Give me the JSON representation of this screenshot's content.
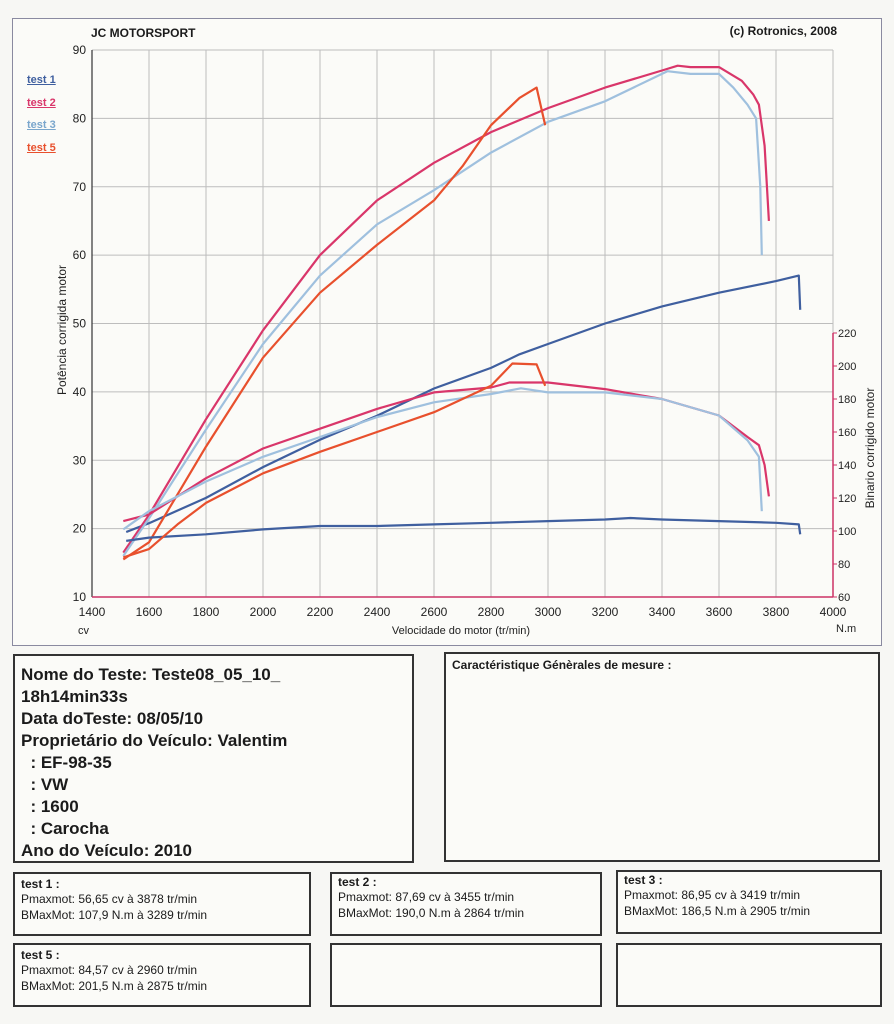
{
  "header": {
    "brand": "JC MOTORSPORT",
    "copyright": "(c) Rotronics, 2008"
  },
  "legend": [
    "test 1",
    "test 2",
    "test 3",
    "test 5"
  ],
  "colors": {
    "test1": "#3f5f9f",
    "test2": "#d9366a",
    "test3": "#9fc0de",
    "test5": "#e8502d",
    "grid": "#bdbdbd",
    "left_axis": "#333333",
    "right_axis": "#cc3366"
  },
  "chart_data": {
    "type": "line",
    "title": "",
    "xlabel": "Velocidade do motor (tr/min)",
    "ylabel": "Potência corrigida  motor",
    "y2label": "Binario corrigido motor",
    "x_unit": "cv",
    "y2_unit": "N.m",
    "xlim": [
      1400,
      4000
    ],
    "ylim": [
      10,
      90
    ],
    "y2lim": [
      60,
      220
    ],
    "x_ticks": [
      1400,
      1600,
      1800,
      2000,
      2200,
      2400,
      2600,
      2800,
      3000,
      3200,
      3400,
      3600,
      3800,
      4000
    ],
    "y_ticks": [
      10,
      20,
      30,
      40,
      50,
      60,
      70,
      80,
      90
    ],
    "y2_ticks": [
      60,
      80,
      100,
      120,
      140,
      160,
      180,
      200,
      220
    ],
    "grid": true,
    "legend_position": "top-left",
    "power_series": [
      {
        "name": "test 1",
        "x": [
          1520,
          1600,
          1800,
          2000,
          2200,
          2400,
          2600,
          2800,
          2900,
          3000,
          3200,
          3400,
          3600,
          3800,
          3880,
          3885
        ],
        "values": [
          19.5,
          20.8,
          24.5,
          29,
          33,
          36.5,
          40.5,
          43.5,
          45.5,
          47,
          50,
          52.5,
          54.5,
          56.2,
          57,
          52
        ]
      },
      {
        "name": "test 2",
        "x": [
          1510,
          1600,
          1700,
          1800,
          2000,
          2200,
          2400,
          2600,
          2800,
          3000,
          3200,
          3400,
          3455,
          3500,
          3600,
          3680,
          3720,
          3740,
          3760,
          3775
        ],
        "values": [
          16.5,
          22,
          29,
          36,
          49,
          60,
          68,
          73.5,
          78,
          81.5,
          84.5,
          87,
          87.7,
          87.5,
          87.5,
          85.5,
          83.5,
          82,
          76,
          65
        ]
      },
      {
        "name": "test 3",
        "x": [
          1510,
          1600,
          1700,
          1800,
          2000,
          2200,
          2400,
          2600,
          2800,
          3000,
          3200,
          3419,
          3500,
          3600,
          3650,
          3700,
          3730,
          3745,
          3750
        ],
        "values": [
          16,
          21.5,
          28,
          34.5,
          47,
          57,
          64.5,
          69.5,
          75,
          79.5,
          82.5,
          86.9,
          86.5,
          86.5,
          84.5,
          82,
          80,
          70,
          60
        ]
      },
      {
        "name": "test 5",
        "x": [
          1510,
          1600,
          1700,
          1800,
          2000,
          2200,
          2400,
          2600,
          2700,
          2800,
          2900,
          2960,
          2990
        ],
        "values": [
          15.5,
          18,
          25,
          32,
          45,
          54.5,
          61.5,
          68,
          73,
          79,
          83,
          84.5,
          79
        ]
      }
    ],
    "torque_series": [
      {
        "name": "test 1",
        "x": [
          1520,
          1600,
          1800,
          2000,
          2200,
          2400,
          2600,
          2800,
          3000,
          3200,
          3289,
          3400,
          3600,
          3800,
          3880,
          3885
        ],
        "values": [
          94,
          96,
          98,
          101,
          103,
          103,
          104,
          105,
          106,
          107,
          107.9,
          107,
          106,
          105,
          104,
          98
        ]
      },
      {
        "name": "test 2",
        "x": [
          1510,
          1600,
          1800,
          2000,
          2200,
          2400,
          2600,
          2800,
          2864,
          3000,
          3200,
          3400,
          3600,
          3700,
          3740,
          3760,
          3775
        ],
        "values": [
          106,
          110,
          132,
          150,
          162,
          174,
          184,
          187,
          190,
          190,
          186,
          180,
          170,
          157,
          152,
          140,
          121
        ]
      },
      {
        "name": "test 3",
        "x": [
          1510,
          1600,
          1800,
          2000,
          2200,
          2400,
          2600,
          2800,
          2905,
          3000,
          3200,
          3400,
          3600,
          3700,
          3740,
          3750
        ],
        "values": [
          101,
          112,
          130,
          145,
          157,
          169,
          178,
          183,
          186.5,
          184,
          184,
          180,
          170,
          155,
          145,
          112
        ]
      },
      {
        "name": "test 5",
        "x": [
          1510,
          1600,
          1700,
          1800,
          2000,
          2200,
          2400,
          2600,
          2800,
          2875,
          2960,
          2990
        ],
        "values": [
          84,
          89,
          104,
          117,
          135,
          148,
          160,
          172,
          188,
          201.5,
          201,
          188
        ]
      }
    ]
  },
  "info": {
    "lines": [
      "Nome do Teste: Teste08_05_10_",
      "18h14min33s",
      "Data doTeste: 08/05/10",
      "Proprietário do Veículo: Valentim",
      "  : EF-98-35",
      "  : VW",
      "  : 1600",
      "  : Carocha",
      "Ano do Veículo: 2010"
    ]
  },
  "characteristics": {
    "title": "Caractéristique Génèrales de mesure :"
  },
  "stats": [
    {
      "title": "test 1 :",
      "power": "Pmaxmot: 56,65 cv à 3878 tr/min",
      "torque": "BMaxMot: 107,9 N.m à 3289 tr/min"
    },
    {
      "title": "test 2 :",
      "power": "Pmaxmot: 87,69 cv à 3455 tr/min",
      "torque": "BMaxMot: 190,0 N.m à 2864 tr/min"
    },
    {
      "title": "test 3 :",
      "power": "Pmaxmot: 86,95 cv à 3419 tr/min",
      "torque": "BMaxMot: 186,5 N.m à 2905 tr/min"
    },
    {
      "title": "test 5 :",
      "power": "Pmaxmot: 84,57 cv à 2960 tr/min",
      "torque": "BMaxMot: 201,5 N.m à 2875 tr/min"
    }
  ]
}
